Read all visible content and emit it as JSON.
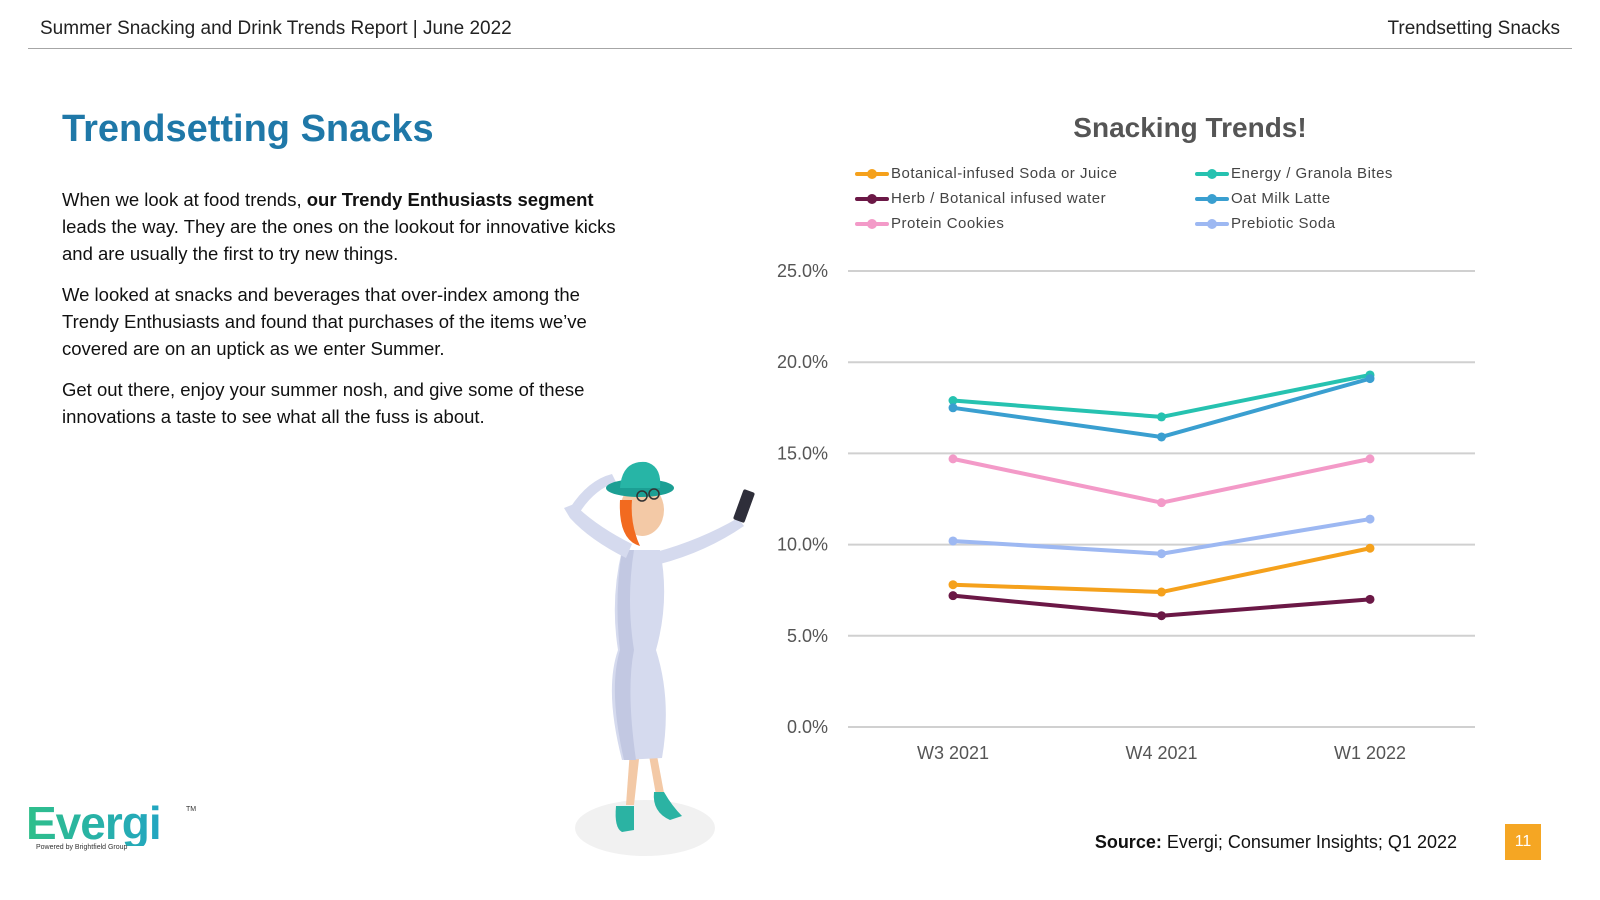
{
  "header": {
    "report_title": "Summer Snacking and Drink Trends Report  |  June 2022",
    "section": "Trendsetting Snacks"
  },
  "main": {
    "title": "Trendsetting Snacks",
    "p1_pre": "When we look at food trends, ",
    "p1_bold": "our Trendy Enthusiasts segment",
    "p1_post": " leads the way. They are the ones on the lookout for innovative kicks and are usually the first to try new things.",
    "p2": "We looked at snacks and beverages that over-index among the Trendy Enthusiasts and found that purchases of the items we’ve covered are on an uptick as we enter Summer.",
    "p3": "Get out there, enjoy your summer nosh, and give some of these innovations a taste to see what all the fuss is about."
  },
  "footer": {
    "logo_text": "Evergi",
    "logo_tm": "TM",
    "logo_sub": "Powered by Brightfield Group",
    "source_label": "Source:",
    "source_text": " Evergi; Consumer Insights; Q1 2022",
    "page_number": "11"
  },
  "chart_data": {
    "type": "line",
    "title": "Snacking Trends!",
    "xlabel": "",
    "ylabel": "",
    "categories": [
      "W3 2021",
      "W4 2021",
      "W1 2022"
    ],
    "ylim": [
      0,
      25
    ],
    "yticks": [
      "0.0%",
      "5.0%",
      "10.0%",
      "15.0%",
      "20.0%",
      "25.0%"
    ],
    "ytick_values": [
      0,
      5,
      10,
      15,
      20,
      25
    ],
    "grid": true,
    "legend_position": "top",
    "series": [
      {
        "name": "Botanical-infused Soda or Juice",
        "color": "#f5a11c",
        "values": [
          7.8,
          7.4,
          9.8
        ]
      },
      {
        "name": "Energy / Granola Bites",
        "color": "#26c2b0",
        "values": [
          17.9,
          17.0,
          19.3
        ]
      },
      {
        "name": "Herb / Botanical infused water",
        "color": "#6b1846",
        "values": [
          7.2,
          6.1,
          7.0
        ]
      },
      {
        "name": "Oat Milk Latte",
        "color": "#3a9fd0",
        "values": [
          17.5,
          15.9,
          19.1
        ]
      },
      {
        "name": "Protein Cookies",
        "color": "#f39ac8",
        "values": [
          14.7,
          12.3,
          14.7
        ]
      },
      {
        "name": "Prebiotic Soda",
        "color": "#9db8f2",
        "values": [
          10.2,
          9.5,
          11.4
        ]
      }
    ]
  }
}
